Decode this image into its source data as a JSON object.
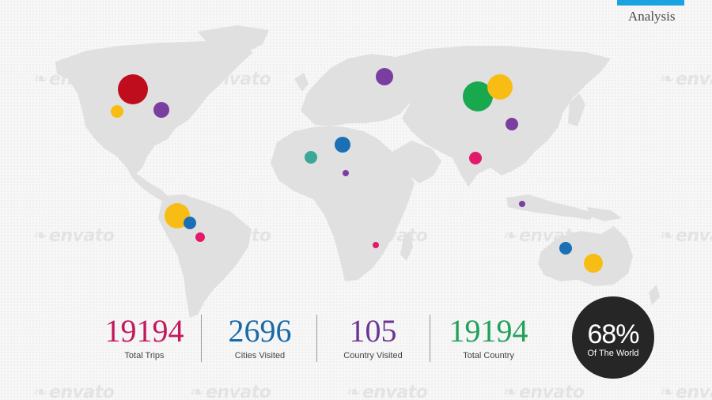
{
  "header": {
    "title": "Analysis",
    "accent_color": "#1aa3e0"
  },
  "watermark": {
    "text": "envato",
    "icon": "leaf-icon"
  },
  "map": {
    "land_color": "#e0e0e0",
    "markers": [
      {
        "name": "north-america-red",
        "color": "#c00d1e"
      },
      {
        "name": "north-america-purple",
        "color": "#7a3ea0"
      },
      {
        "name": "north-america-yellow",
        "color": "#f8bd15"
      },
      {
        "name": "south-america-yellow",
        "color": "#f8bd15"
      },
      {
        "name": "south-america-blue",
        "color": "#1a6fb5"
      },
      {
        "name": "south-america-pink",
        "color": "#e3196a"
      },
      {
        "name": "europe-purple",
        "color": "#7a3ea0"
      },
      {
        "name": "africa-teal",
        "color": "#3aa896"
      },
      {
        "name": "africa-blue",
        "color": "#1a6fb5"
      },
      {
        "name": "africa-purple",
        "color": "#7a3ea0"
      },
      {
        "name": "africa-pink",
        "color": "#e3196a"
      },
      {
        "name": "asia-green",
        "color": "#18a84e"
      },
      {
        "name": "asia-yellow",
        "color": "#f8bd15"
      },
      {
        "name": "asia-purple",
        "color": "#7a3ea0"
      },
      {
        "name": "india-pink",
        "color": "#e3196a"
      },
      {
        "name": "indonesia-purple",
        "color": "#7a3ea0"
      },
      {
        "name": "australia-blue",
        "color": "#1a6fb5"
      },
      {
        "name": "australia-yellow",
        "color": "#f8bd15"
      }
    ]
  },
  "stats": [
    {
      "value": "19194",
      "label": "Total Trips",
      "color": "#c4185c"
    },
    {
      "value": "2696",
      "label": "Cities Visited",
      "color": "#1a6aa8"
    },
    {
      "value": "105",
      "label": "Country Visited",
      "color": "#6a3592"
    },
    {
      "value": "19194",
      "label": "Total Country",
      "color": "#21a15a"
    }
  ],
  "badge": {
    "percent": "68%",
    "caption": "Of The World"
  }
}
